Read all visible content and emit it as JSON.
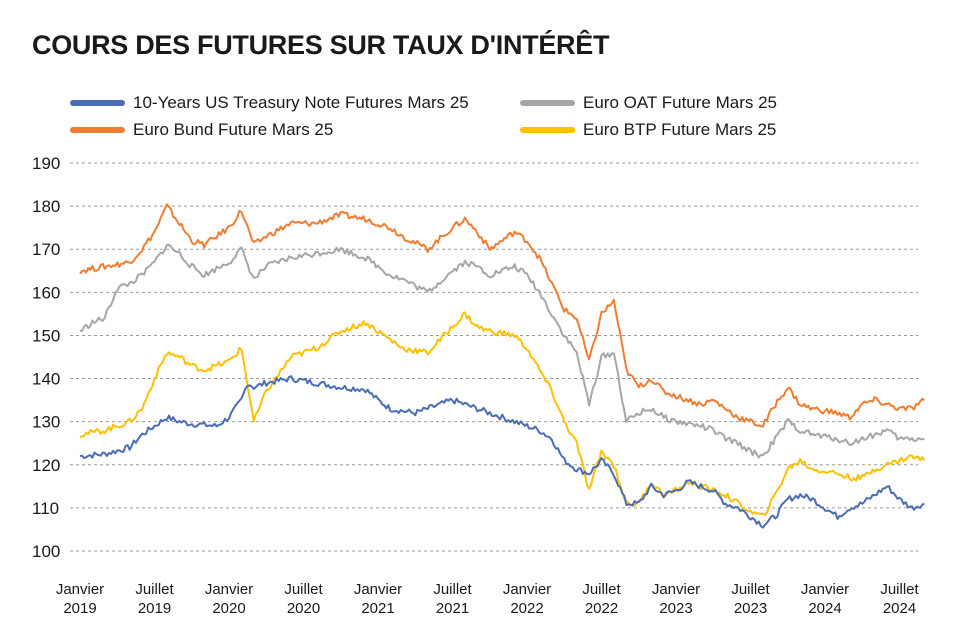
{
  "title": "COURS DES FUTURES SUR TAUX D'INTÉRÊT",
  "chart_data": {
    "type": "line",
    "ylim": [
      100,
      190
    ],
    "yticks": [
      100,
      110,
      120,
      130,
      140,
      150,
      160,
      170,
      180,
      190
    ],
    "grid": true,
    "legend_position": "top",
    "x_ticks": [
      {
        "line1": "Janvier",
        "line2": "2019"
      },
      {
        "line1": "Juillet",
        "line2": "2019"
      },
      {
        "line1": "Janvier",
        "line2": "2020"
      },
      {
        "line1": "Juillet",
        "line2": "2020"
      },
      {
        "line1": "Janvier",
        "line2": "2021"
      },
      {
        "line1": "Juillet",
        "line2": "2021"
      },
      {
        "line1": "Janvier",
        "line2": "2022"
      },
      {
        "line1": "Juillet",
        "line2": "2022"
      },
      {
        "line1": "Janvier",
        "line2": "2023"
      },
      {
        "line1": "Juillet",
        "line2": "2023"
      },
      {
        "line1": "Janvier",
        "line2": "2024"
      },
      {
        "line1": "Juillet",
        "line2": "2024"
      }
    ],
    "x_range_months": [
      0,
      68.5
    ],
    "series": [
      {
        "name": "10-Years US Treasury Note Futures Mars 25",
        "color": "#4a6db5",
        "points": [
          [
            0,
            122
          ],
          [
            2,
            122.5
          ],
          [
            4,
            124
          ],
          [
            5,
            127
          ],
          [
            6,
            129
          ],
          [
            7,
            131
          ],
          [
            8,
            130
          ],
          [
            9,
            129.5
          ],
          [
            11,
            129
          ],
          [
            12,
            131
          ],
          [
            13,
            135
          ],
          [
            13.5,
            139
          ],
          [
            14,
            138
          ],
          [
            15,
            139
          ],
          [
            17,
            140
          ],
          [
            19,
            139
          ],
          [
            21,
            138
          ],
          [
            23,
            137.5
          ],
          [
            24,
            135
          ],
          [
            25,
            133
          ],
          [
            27,
            132
          ],
          [
            28,
            133
          ],
          [
            30,
            135
          ],
          [
            32,
            133
          ],
          [
            34,
            131
          ],
          [
            36,
            129
          ],
          [
            37,
            128
          ],
          [
            38,
            126
          ],
          [
            39,
            121
          ],
          [
            40,
            119
          ],
          [
            41,
            118
          ],
          [
            42,
            121
          ],
          [
            43,
            118
          ],
          [
            44,
            111
          ],
          [
            45,
            111
          ],
          [
            46,
            115
          ],
          [
            47,
            113
          ],
          [
            48,
            114
          ],
          [
            49,
            116
          ],
          [
            50,
            115
          ],
          [
            51,
            114
          ],
          [
            52,
            111
          ],
          [
            53,
            110
          ],
          [
            54,
            108
          ],
          [
            55,
            106
          ],
          [
            56,
            108
          ],
          [
            57,
            112
          ],
          [
            58,
            113
          ],
          [
            59,
            112
          ],
          [
            60,
            110
          ],
          [
            61,
            108
          ],
          [
            62,
            110
          ],
          [
            63,
            111
          ],
          [
            64,
            113
          ],
          [
            65,
            115
          ],
          [
            66,
            112
          ],
          [
            67,
            110
          ],
          [
            68,
            111
          ]
        ]
      },
      {
        "name": "Euro Bund Future Mars 25",
        "color": "#ef7d31",
        "points": [
          [
            0,
            165
          ],
          [
            2,
            166
          ],
          [
            4,
            167
          ],
          [
            5,
            170
          ],
          [
            6,
            174
          ],
          [
            7,
            180
          ],
          [
            8,
            176
          ],
          [
            9,
            172
          ],
          [
            10,
            171
          ],
          [
            12,
            175
          ],
          [
            13,
            179
          ],
          [
            14,
            171
          ],
          [
            15,
            173
          ],
          [
            17,
            176
          ],
          [
            19,
            176
          ],
          [
            21,
            178
          ],
          [
            23,
            177
          ],
          [
            25,
            175
          ],
          [
            26,
            173
          ],
          [
            28,
            170
          ],
          [
            30,
            175
          ],
          [
            31,
            177
          ],
          [
            32,
            174
          ],
          [
            33,
            170
          ],
          [
            35,
            174
          ],
          [
            36,
            172
          ],
          [
            37,
            168
          ],
          [
            38,
            162
          ],
          [
            39,
            156
          ],
          [
            40,
            154
          ],
          [
            41,
            144
          ],
          [
            42,
            155
          ],
          [
            43,
            158
          ],
          [
            44,
            142
          ],
          [
            45,
            138
          ],
          [
            46,
            140
          ],
          [
            47,
            137
          ],
          [
            48,
            136
          ],
          [
            50,
            134
          ],
          [
            51,
            135
          ],
          [
            52,
            133
          ],
          [
            53,
            131
          ],
          [
            54,
            130
          ],
          [
            55,
            129
          ],
          [
            56,
            134
          ],
          [
            57,
            138
          ],
          [
            58,
            134
          ],
          [
            59,
            133
          ],
          [
            61,
            132
          ],
          [
            62,
            131
          ],
          [
            63,
            134
          ],
          [
            64,
            135
          ],
          [
            65,
            134
          ],
          [
            66,
            133
          ],
          [
            67,
            133
          ],
          [
            68,
            135
          ]
        ]
      },
      {
        "name": "Euro OAT Future Mars 25",
        "color": "#a6a6a6",
        "points": [
          [
            0,
            151
          ],
          [
            1,
            153
          ],
          [
            2,
            154
          ],
          [
            3,
            161
          ],
          [
            4,
            162
          ],
          [
            5,
            164
          ],
          [
            6,
            167
          ],
          [
            7,
            171
          ],
          [
            8,
            169
          ],
          [
            9,
            166
          ],
          [
            10,
            164
          ],
          [
            12,
            167
          ],
          [
            13,
            170
          ],
          [
            14,
            163
          ],
          [
            15,
            166
          ],
          [
            17,
            168
          ],
          [
            19,
            169
          ],
          [
            21,
            170
          ],
          [
            23,
            168
          ],
          [
            25,
            164
          ],
          [
            26,
            163
          ],
          [
            28,
            160
          ],
          [
            30,
            165
          ],
          [
            31,
            167
          ],
          [
            32,
            166
          ],
          [
            33,
            164
          ],
          [
            35,
            166
          ],
          [
            36,
            164
          ],
          [
            37,
            160
          ],
          [
            38,
            155
          ],
          [
            39,
            150
          ],
          [
            40,
            146
          ],
          [
            41,
            134
          ],
          [
            42,
            145
          ],
          [
            43,
            146
          ],
          [
            44,
            130
          ],
          [
            45,
            132
          ],
          [
            46,
            133
          ],
          [
            47,
            131
          ],
          [
            48,
            130
          ],
          [
            50,
            129
          ],
          [
            51,
            128
          ],
          [
            52,
            126
          ],
          [
            53,
            125
          ],
          [
            54,
            123
          ],
          [
            55,
            122
          ],
          [
            56,
            126
          ],
          [
            57,
            130
          ],
          [
            58,
            128
          ],
          [
            59,
            127
          ],
          [
            61,
            126
          ],
          [
            62,
            125
          ],
          [
            63,
            126
          ],
          [
            64,
            127
          ],
          [
            65,
            128
          ],
          [
            66,
            126
          ],
          [
            67,
            126
          ],
          [
            68,
            126
          ]
        ]
      },
      {
        "name": "Euro BTP Future Mars 25",
        "color": "#ffc000",
        "points": [
          [
            0,
            127
          ],
          [
            2,
            128
          ],
          [
            4,
            130
          ],
          [
            5,
            133
          ],
          [
            6,
            140
          ],
          [
            7,
            146
          ],
          [
            8,
            145
          ],
          [
            9,
            143
          ],
          [
            10,
            142
          ],
          [
            12,
            144
          ],
          [
            13,
            147
          ],
          [
            14,
            130
          ],
          [
            15,
            137
          ],
          [
            17,
            145
          ],
          [
            19,
            147
          ],
          [
            21,
            151
          ],
          [
            23,
            153
          ],
          [
            25,
            149
          ],
          [
            26,
            147
          ],
          [
            28,
            146
          ],
          [
            30,
            152
          ],
          [
            31,
            155
          ],
          [
            32,
            152
          ],
          [
            33,
            151
          ],
          [
            35,
            150
          ],
          [
            36,
            147
          ],
          [
            37,
            142
          ],
          [
            38,
            137
          ],
          [
            39,
            130
          ],
          [
            40,
            125
          ],
          [
            41,
            114
          ],
          [
            42,
            123
          ],
          [
            43,
            120
          ],
          [
            44,
            111
          ],
          [
            45,
            111
          ],
          [
            46,
            116
          ],
          [
            47,
            113
          ],
          [
            48,
            114
          ],
          [
            49,
            116
          ],
          [
            50,
            115
          ],
          [
            51,
            114
          ],
          [
            52,
            113
          ],
          [
            53,
            111
          ],
          [
            54,
            109
          ],
          [
            55,
            108
          ],
          [
            56,
            113
          ],
          [
            57,
            119
          ],
          [
            58,
            121
          ],
          [
            59,
            119
          ],
          [
            61,
            118
          ],
          [
            62,
            117
          ],
          [
            63,
            117
          ],
          [
            64,
            119
          ],
          [
            65,
            120
          ],
          [
            66,
            121
          ],
          [
            67,
            122
          ],
          [
            68,
            121
          ]
        ]
      }
    ]
  }
}
